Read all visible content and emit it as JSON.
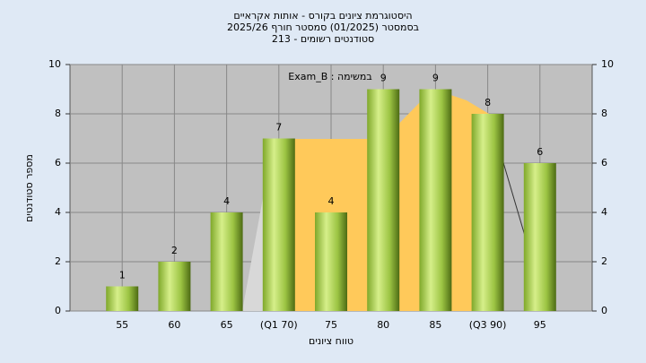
{
  "chart_data": {
    "type": "bar",
    "title": [
      "היסטוגרמת ציונים בקורס - אותות אקראיים",
      "בסמסטר (01/2025) סמסטר חורף 2025/26",
      "סטודנטים רשומים - 213"
    ],
    "annotation": "Exam_B : במשימה",
    "x_label": "טווח ציונים",
    "y_label": "מספר סטודנטים",
    "categories": [
      "55",
      "60",
      "65",
      "(Q1 70)",
      "75",
      "80",
      "85",
      "(Q3 90)",
      "95"
    ],
    "values": [
      1,
      2,
      4,
      7,
      4,
      9,
      9,
      8,
      6
    ],
    "ylim": [
      0,
      10
    ],
    "yticks": [
      0,
      2,
      4,
      6,
      8,
      10
    ],
    "grid": true
  }
}
